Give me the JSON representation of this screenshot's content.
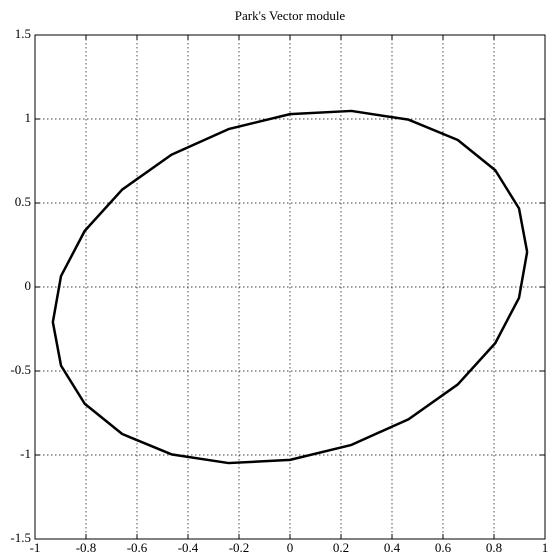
{
  "chart_data": {
    "type": "line",
    "title": "Park's Vector module",
    "series": [
      {
        "color": "#000000",
        "x": [
          0.93,
          0.898,
          0.805,
          0.658,
          0.465,
          0.241,
          0,
          -0.241,
          -0.465,
          -0.658,
          -0.805,
          -0.898,
          -0.93,
          -0.898,
          -0.805,
          -0.658,
          -0.465,
          -0.241,
          0,
          0.241,
          0.465,
          0.658,
          0.805,
          0.898,
          0.93
        ],
        "values": [
          0.209,
          0.468,
          0.695,
          0.875,
          0.996,
          1.048,
          1.029,
          0.94,
          0.787,
          0.58,
          0.334,
          0.065,
          -0.209,
          -0.468,
          -0.695,
          -0.875,
          -0.996,
          -1.048,
          -1.029,
          -0.94,
          -0.787,
          -0.58,
          -0.334,
          -0.065,
          0.209
        ]
      }
    ],
    "xlim": [
      -1,
      1
    ],
    "xticks": [
      -1,
      -0.8,
      -0.6,
      -0.4,
      -0.2,
      0,
      0.2,
      0.4,
      0.6,
      0.8,
      1
    ],
    "ylim": [
      -1.5,
      1.5
    ],
    "yticks": [
      -1.5,
      -1,
      -0.5,
      0,
      0.5,
      1,
      1.5
    ],
    "grid": true
  }
}
